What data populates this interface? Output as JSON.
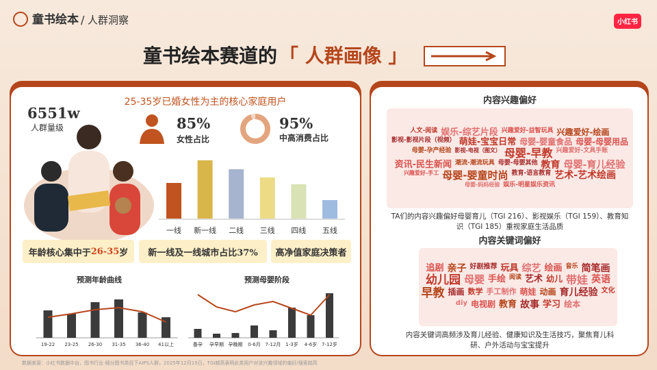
{
  "header": {
    "section": "童书绘本",
    "divider": "/",
    "subsection": "人群洞察",
    "logo": "小红书"
  },
  "title": {
    "main": "童书绘本赛道的",
    "highlight": "「 人群画像 」"
  },
  "left": {
    "headline": "25-35岁已婚女性为主的核心家庭用户",
    "scale": {
      "value": "6551w",
      "label": "人群量级"
    },
    "stats": [
      {
        "value": 85,
        "label": "85%",
        "caption": "女性占比"
      },
      {
        "value": 95,
        "label": "95%",
        "caption": "中高消费占比"
      }
    ],
    "badges": [
      {
        "parts": [
          "年龄核心集中于",
          "26-35",
          "岁"
        ]
      },
      {
        "parts": [
          "新一线及一线城市占比37%"
        ]
      },
      {
        "parts": [
          "高净值家庭决策者"
        ]
      }
    ]
  },
  "chart_data": [
    {
      "type": "bar",
      "categories": [
        "一线",
        "新一线",
        "二线",
        "三线",
        "四线",
        "五线"
      ],
      "values": [
        52,
        85,
        72,
        60,
        50,
        27
      ],
      "colors": [
        "#c0531f",
        "#d9b64a",
        "#a7b4cf",
        "#eddb86",
        "#d8e2b4",
        "#9ebbe0"
      ],
      "ylim": [
        0,
        100
      ]
    },
    {
      "type": "combo",
      "title": "预测年龄曲线",
      "categories": [
        "19-22",
        "23-25",
        "26-30",
        "31-35",
        "36-40",
        "41以上"
      ],
      "series": [
        {
          "type": "bar",
          "color": "#3b3b3b",
          "values": [
            40,
            35,
            52,
            56,
            37,
            30
          ]
        },
        {
          "type": "line",
          "color": "#b5451b",
          "values": [
            30,
            35,
            41,
            44,
            38,
            23
          ]
        }
      ],
      "ylim": [
        0,
        70
      ]
    },
    {
      "type": "combo",
      "title": "预测母婴阶段",
      "categories": [
        "备孕",
        "孕早期",
        "孕晚期",
        "0-6月",
        "7-12月",
        "1-3岁",
        "4-6岁",
        "7-12岁"
      ],
      "series": [
        {
          "type": "bar",
          "color": "#3b3b3b",
          "values": [
            13,
            6,
            7,
            18,
            11,
            44,
            33,
            65
          ]
        },
        {
          "type": "line",
          "color": "#b5451b",
          "values": [
            63,
            45,
            38,
            48,
            53,
            43,
            33,
            63
          ]
        }
      ],
      "ylim": [
        0,
        70
      ]
    }
  ],
  "right": {
    "interest": {
      "title": "内容兴趣偏好",
      "words": [
        "人文-阅读",
        "娱乐-综艺片段",
        "兴趣爱好-益智玩具",
        "兴趣爱好-绘画",
        "影视-影视片段（视频）",
        "萌娃-宝宝日常",
        "母婴-婴童食品",
        "母婴-母婴用品",
        "母婴-孕产经验",
        "影视-电视（图文）",
        "母婴-早教",
        "兴趣爱好-文具手账",
        "资讯-民生新闻",
        "潮流-潮流玩具",
        "母婴-母婴其他",
        "教育",
        "母婴-育儿经验",
        "兴趣爱好-手工",
        "母婴-婴童时尚",
        "教育-语言教育",
        "艺术-艺术绘画",
        "母婴-妈妈经验",
        "娱乐-明星娱乐资讯"
      ],
      "description": "TA们的内容兴趣偏好母婴育儿（TGI 216）、影视娱乐（TGI 159）、教育知识（TGI 185）重视家庭生活品质"
    },
    "keywords": {
      "title": "内容关键词偏好",
      "words": [
        "追剧",
        "亲子",
        "好剧推荐",
        "玩具",
        "综艺",
        "绘画",
        "音乐",
        "简笔画",
        "幼儿园",
        "母婴",
        "手绘",
        "阅读",
        "艺术",
        "幼儿",
        "带娃",
        "英语",
        "早教",
        "插画",
        "数学",
        "手工制作",
        "萌娃",
        "动画",
        "育儿经验",
        "文化",
        "diy",
        "电视剧",
        "教育",
        "故事",
        "学习",
        "绘本"
      ],
      "description": "内容关键词高频涉及育儿经验、健康知识及生活技巧，聚焦育儿科研、户外活动与宝宝提升"
    }
  },
  "footer": "数据来源：小红书数据中台，图书行业-细分图书类目下AIPS人群，2025年12月15日，TGI越高表明此类用户对该兴趣领域的偏好/搜索越高"
}
